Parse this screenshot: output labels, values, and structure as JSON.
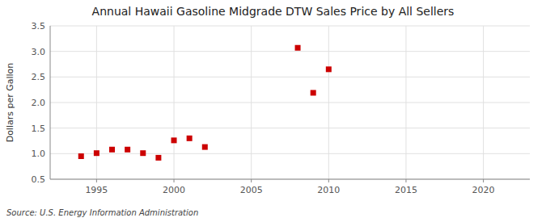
{
  "chart_data": {
    "type": "scatter",
    "title": "Annual Hawaii Gasoline Midgrade DTW Sales Price by All Sellers",
    "ylabel": "Dollars per Gallon",
    "source": "Source: U.S. Energy Information Administration",
    "x": [
      1994,
      1995,
      1996,
      1997,
      1998,
      1999,
      2000,
      2001,
      2002,
      2008,
      2009,
      2010
    ],
    "values": [
      0.95,
      1.01,
      1.08,
      1.08,
      1.01,
      0.92,
      1.26,
      1.3,
      1.13,
      3.07,
      2.19,
      2.65
    ],
    "color": "#cc0000",
    "marker": "square",
    "xlim": [
      1992,
      2023
    ],
    "ylim": [
      0.5,
      3.5
    ],
    "xticks": [
      1995,
      2000,
      2005,
      2010,
      2015,
      2020
    ],
    "yticks": [
      0.5,
      {
        "value": 1.0,
        "label": "1.0"
      },
      1.5,
      {
        "value": 2.0,
        "label": "2.0"
      },
      2.5,
      {
        "value": 3.0,
        "label": "3.0"
      },
      3.5
    ],
    "grid": true
  }
}
